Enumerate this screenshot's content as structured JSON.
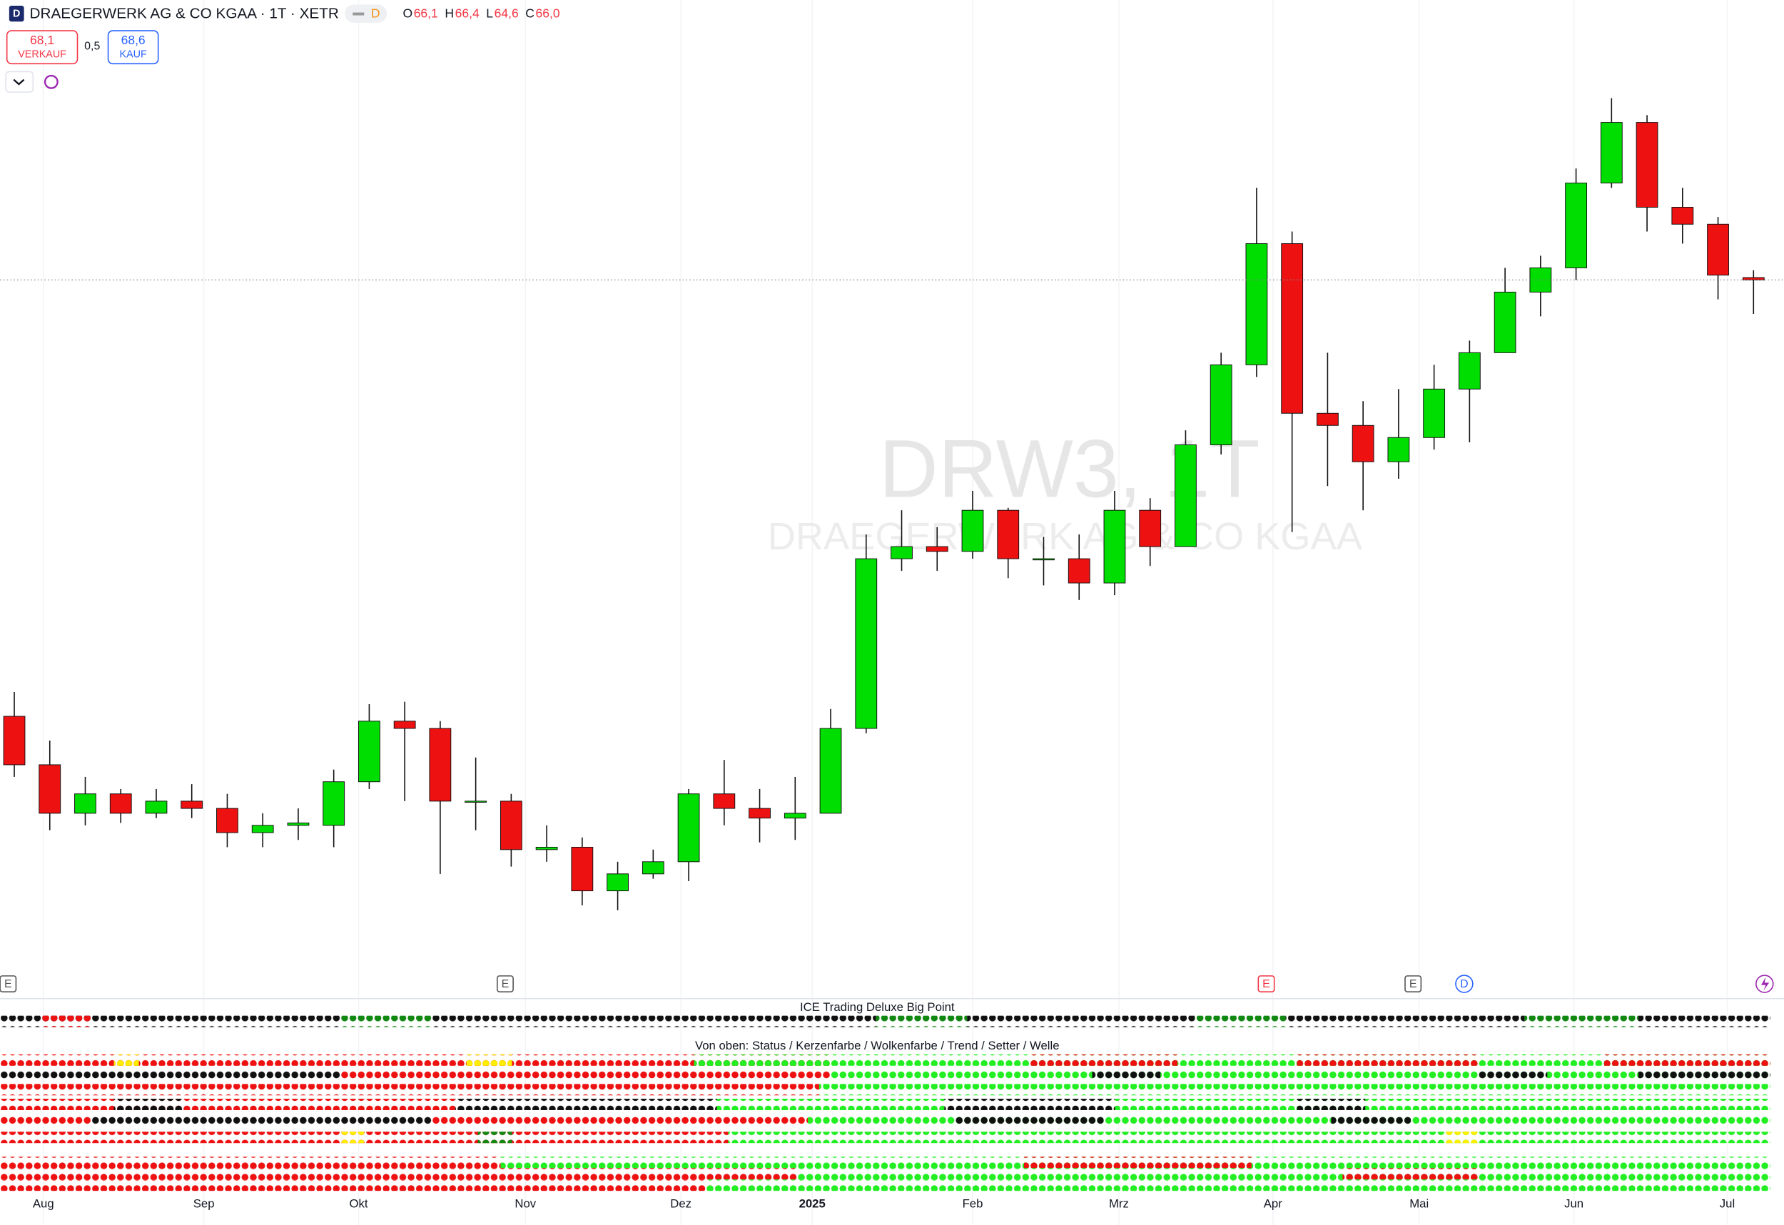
{
  "header": {
    "symbol_badge": "D",
    "title": "DRAEGERWERK AG & CO KGAA · 1T · XETR",
    "interval_badge": "D",
    "ohlc": [
      {
        "key": "O",
        "value": "66,1"
      },
      {
        "key": "H",
        "value": "66,4"
      },
      {
        "key": "L",
        "value": "64,6"
      },
      {
        "key": "C",
        "value": "66,0"
      }
    ],
    "sell": {
      "price": "68,1",
      "label": "VERKAUF"
    },
    "spread": "0,5",
    "buy": {
      "price": "68,6",
      "label": "KAUF"
    },
    "watermark": {
      "symbol": "DRW3, 1T",
      "name": "DRAEGERWERK AG & CO KGAA"
    },
    "events": [
      "E",
      "E",
      "E",
      "E",
      "D"
    ],
    "indicators": [
      "ICE Trading Deluxe Big Point",
      "Von oben: Status / Kerzenfarbe / Wolkenfarbe / Trend / Setter / Welle"
    ]
  },
  "chart_data": {
    "type": "candlestick",
    "up_color": "#00dd00",
    "down_color": "#ee1111",
    "x": [
      2,
      7,
      12,
      17,
      22,
      27,
      32,
      37,
      42,
      47,
      52,
      57,
      62,
      67,
      72,
      77,
      82,
      87,
      92,
      97,
      102,
      107,
      112,
      117,
      122,
      127,
      132,
      137,
      142,
      147,
      152,
      157,
      162,
      167,
      172,
      177,
      182,
      187,
      192,
      197,
      202,
      207,
      212,
      217,
      222,
      227,
      232,
      237,
      242,
      247
    ],
    "open": [
      48,
      46,
      44,
      44.8,
      44,
      44.5,
      44.2,
      43.2,
      43.5,
      43.5,
      45.3,
      47.8,
      47.5,
      44.5,
      44.5,
      42.5,
      42.6,
      40.8,
      41.5,
      42,
      44.8,
      44.2,
      43.8,
      44,
      47.5,
      54.5,
      55,
      54.8,
      56.5,
      54.5,
      54.5,
      53.5,
      56.5,
      55,
      59.2,
      62.5,
      67.5,
      60.5,
      60,
      58.5,
      59.5,
      61.5,
      63,
      65.5,
      66.5,
      70,
      72.5,
      69,
      68.3,
      66.1
    ],
    "high": [
      49,
      47,
      45.5,
      45,
      45,
      45.2,
      44.8,
      44,
      44.2,
      45.8,
      48.5,
      48.6,
      47.8,
      46.3,
      44.8,
      43.5,
      43,
      42,
      42.5,
      45,
      46.2,
      45,
      45.5,
      48.3,
      55.5,
      56.5,
      55.8,
      57.3,
      56.6,
      55.4,
      55.5,
      57.3,
      57,
      59.8,
      63,
      69.8,
      68,
      63,
      61,
      61.5,
      62.5,
      63.5,
      66.5,
      67,
      70.6,
      73.5,
      72.8,
      69.8,
      68.6,
      66.4
    ],
    "low": [
      45.5,
      43.3,
      43.5,
      43.6,
      43.8,
      43.8,
      42.6,
      42.6,
      42.9,
      42.6,
      45,
      44.5,
      41.5,
      43.3,
      41.8,
      42,
      40.2,
      40,
      41.3,
      41.2,
      43.5,
      42.8,
      42.9,
      44,
      47.3,
      54,
      54,
      54.5,
      53.7,
      53.4,
      52.8,
      53,
      54.2,
      55,
      58.8,
      62,
      55.6,
      57.5,
      56.5,
      57.8,
      59,
      59.3,
      63,
      64.5,
      66,
      69.8,
      68,
      67.5,
      65.2,
      64.6
    ],
    "close": [
      46,
      44,
      44.8,
      44,
      44.5,
      44.2,
      43.2,
      43.5,
      43.6,
      45.3,
      47.8,
      47.5,
      44.5,
      44.5,
      42.5,
      42.6,
      40.8,
      41.5,
      42,
      44.8,
      44.2,
      43.8,
      44,
      47.5,
      54.5,
      55,
      54.8,
      56.5,
      54.5,
      54.5,
      53.5,
      56.5,
      55,
      59.2,
      62.5,
      67.5,
      60.5,
      60,
      58.5,
      59.5,
      61.5,
      63,
      65.5,
      66.5,
      70,
      72.5,
      69,
      68.3,
      66.2,
      66
    ],
    "xlim": [
      0,
      250
    ],
    "ylim": [
      37.9,
      74.5
    ],
    "xticks": [
      {
        "value": 6.1,
        "label": "Aug"
      },
      {
        "value": 28.7,
        "label": "Sep"
      },
      {
        "value": 50.5,
        "label": "Okt"
      },
      {
        "value": 74,
        "label": "Nov"
      },
      {
        "value": 95.9,
        "label": "Dez"
      },
      {
        "value": 114.4,
        "label": "2025"
      },
      {
        "value": 137,
        "label": "Feb"
      },
      {
        "value": 157.6,
        "label": "Mrz"
      },
      {
        "value": 179.3,
        "label": "Apr"
      },
      {
        "value": 199.9,
        "label": "Mai"
      },
      {
        "value": 221.7,
        "label": "Jun"
      },
      {
        "value": 243.3,
        "label": "Jul"
      }
    ],
    "grid": true
  }
}
